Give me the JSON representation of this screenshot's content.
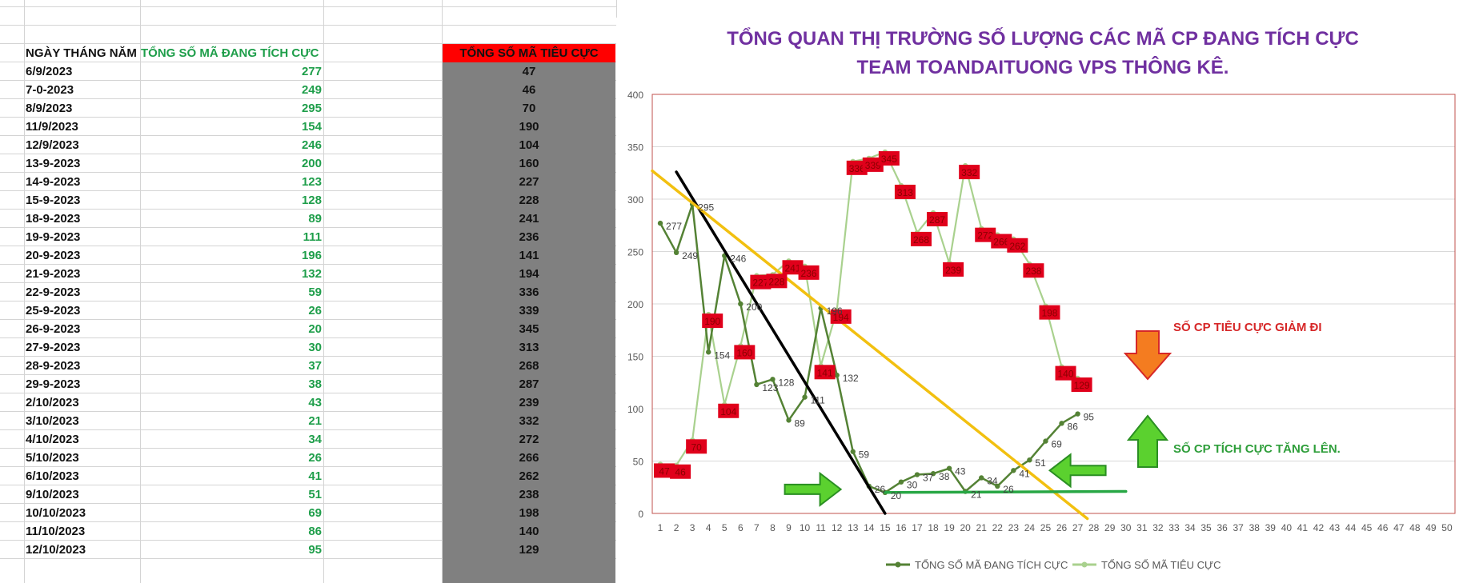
{
  "sheet": {
    "headers": {
      "date": "NGÀY THÁNG NĂM",
      "positive": "TỔNG SỐ MÃ ĐANG TÍCH CỰC",
      "negative": "TỔNG SỐ MÃ TIÊU CỰC"
    },
    "rows": [
      {
        "date": "6/9/2023",
        "positive": "277",
        "negative": "47"
      },
      {
        "date": "7-0-2023",
        "positive": "249",
        "negative": "46"
      },
      {
        "date": "8/9/2023",
        "positive": "295",
        "negative": "70"
      },
      {
        "date": "11/9/2023",
        "positive": "154",
        "negative": "190"
      },
      {
        "date": "12/9/2023",
        "positive": "246",
        "negative": "104"
      },
      {
        "date": "13-9-2023",
        "positive": "200",
        "negative": "160"
      },
      {
        "date": "14-9-2023",
        "positive": "123",
        "negative": "227"
      },
      {
        "date": "15-9-2023",
        "positive": "128",
        "negative": "228"
      },
      {
        "date": "18-9-2023",
        "positive": "89",
        "negative": "241"
      },
      {
        "date": "19-9-2023",
        "positive": "111",
        "negative": "236"
      },
      {
        "date": "20-9-2023",
        "positive": "196",
        "negative": "141"
      },
      {
        "date": "21-9-2023",
        "positive": "132",
        "negative": "194"
      },
      {
        "date": "22-9-2023",
        "positive": "59",
        "negative": "336"
      },
      {
        "date": "25-9-2023",
        "positive": "26",
        "negative": "339"
      },
      {
        "date": "26-9-2023",
        "positive": "20",
        "negative": "345"
      },
      {
        "date": "27-9-2023",
        "positive": "30",
        "negative": "313"
      },
      {
        "date": "28-9-2023",
        "positive": "37",
        "negative": "268"
      },
      {
        "date": "29-9-2023",
        "positive": "38",
        "negative": "287"
      },
      {
        "date": "2/10/2023",
        "positive": "43",
        "negative": "239"
      },
      {
        "date": "3/10/2023",
        "positive": "21",
        "negative": "332"
      },
      {
        "date": "4/10/2023",
        "positive": "34",
        "negative": "272"
      },
      {
        "date": "5/10/2023",
        "positive": "26",
        "negative": "266"
      },
      {
        "date": "6/10/2023",
        "positive": "41",
        "negative": "262"
      },
      {
        "date": "9/10/2023",
        "positive": "51",
        "negative": "238"
      },
      {
        "date": "10/10/2023",
        "positive": "69",
        "negative": "198"
      },
      {
        "date": "11/10/2023",
        "positive": "86",
        "negative": "140"
      },
      {
        "date": "12/10/2023",
        "positive": "95",
        "negative": "129"
      }
    ]
  },
  "chart_data": {
    "type": "line",
    "title": "TỔNG QUAN THỊ TRƯỜNG SỐ LƯỢNG CÁC MÃ CP ĐANG TÍCH CỰC",
    "subtitle": "TEAM TOANDAITUONG VPS THÔNG KÊ.",
    "x": [
      1,
      2,
      3,
      4,
      5,
      6,
      7,
      8,
      9,
      10,
      11,
      12,
      13,
      14,
      15,
      16,
      17,
      18,
      19,
      20,
      21,
      22,
      23,
      24,
      25,
      26,
      27
    ],
    "xlim": [
      1,
      50
    ],
    "ylim": [
      0,
      400
    ],
    "yticks": [
      0,
      50,
      100,
      150,
      200,
      250,
      300,
      350,
      400
    ],
    "grid": true,
    "legend_position": "bottom",
    "series": [
      {
        "name": "TỔNG SỐ MÃ ĐANG TÍCH CỰC",
        "color": "#548235",
        "labels": "gray",
        "values": [
          277,
          249,
          295,
          154,
          246,
          200,
          123,
          128,
          89,
          111,
          196,
          132,
          59,
          26,
          20,
          30,
          37,
          38,
          43,
          21,
          34,
          26,
          41,
          51,
          69,
          86,
          95
        ]
      },
      {
        "name": "TỔNG SỐ MÃ TIÊU CỰC",
        "color": "#a9d18e",
        "labels": "red-boxes",
        "values": [
          47,
          46,
          70,
          190,
          104,
          160,
          227,
          228,
          241,
          236,
          141,
          194,
          336,
          339,
          345,
          313,
          268,
          287,
          239,
          332,
          272,
          266,
          262,
          238,
          198,
          140,
          129
        ]
      }
    ],
    "trendlines": [
      {
        "color": "#000000",
        "from": [
          2,
          326
        ],
        "to": [
          15,
          0
        ]
      },
      {
        "color": "#f2c010",
        "from": [
          0.5,
          327
        ],
        "to": [
          27.6,
          -5
        ]
      },
      {
        "color": "#28a745",
        "from": [
          15,
          20
        ],
        "to": [
          30,
          21
        ]
      }
    ],
    "annotations": [
      {
        "text": "SỐ CP TIÊU CỰC GIẢM ĐI",
        "color": "#d62728",
        "arrow": "down",
        "arrow_color": "#f47c20"
      },
      {
        "text": "SỐ CP TÍCH CỰC TĂNG LÊN.",
        "color": "#2e9e3a",
        "arrow": "up",
        "arrow_color": "#5bd12f"
      }
    ],
    "side_arrows": [
      {
        "direction": "right",
        "color": "#5bd12f",
        "at": [
          10.5,
          23
        ]
      },
      {
        "direction": "left",
        "color": "#5bd12f",
        "at": [
          27,
          41
        ]
      }
    ]
  }
}
